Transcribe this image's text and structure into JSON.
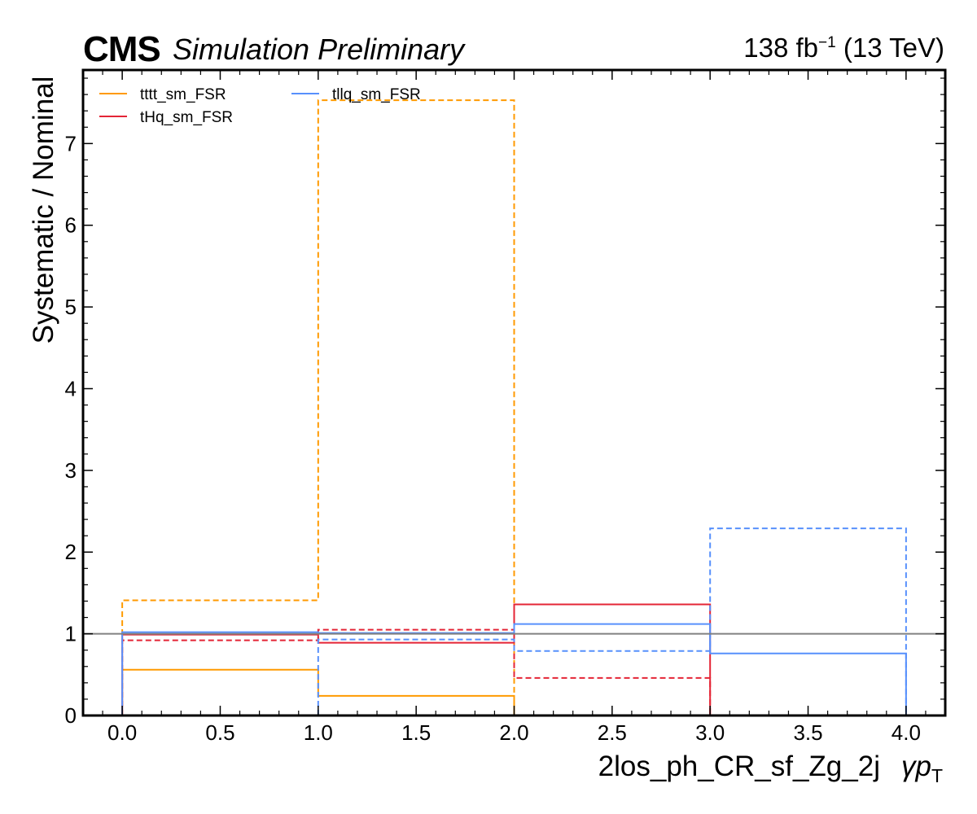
{
  "header": {
    "experiment": "CMS",
    "status": "Simulation Preliminary",
    "lumi_value": "138 fb",
    "lumi_exponent": "−1",
    "energy": "(13 TeV)"
  },
  "chart_data": {
    "type": "step",
    "xlabel_region": "2los_ph_CR_sf_Zg_2j",
    "xlabel_symbol": "γp",
    "xlabel_subscript": "T",
    "ylabel": "Systematic / Nominal",
    "xlim": [
      -0.2,
      4.2
    ],
    "ylim": [
      0,
      7.9
    ],
    "x_ticks": [
      "0.0",
      "0.5",
      "1.0",
      "1.5",
      "2.0",
      "2.5",
      "3.0",
      "3.5",
      "4.0"
    ],
    "y_ticks": [
      "0",
      "1",
      "2",
      "3",
      "4",
      "5",
      "6",
      "7"
    ],
    "bin_edges": [
      0,
      1,
      2,
      3,
      4
    ],
    "reference_line": 1,
    "legend_position": "top-left",
    "series": [
      {
        "name": "tttt_sm_FSR",
        "color": "#ff9a00",
        "up": [
          0.56,
          0.24,
          null,
          null
        ],
        "down": [
          1.41,
          7.53,
          null,
          null
        ]
      },
      {
        "name": "tHq_sm_FSR",
        "color": "#e42536",
        "up": [
          0.99,
          0.89,
          1.36,
          null
        ],
        "down": [
          0.92,
          1.05,
          0.46,
          null
        ]
      },
      {
        "name": "tllq_sm_FSR",
        "color": "#5790fc",
        "up": [
          1.02,
          1.01,
          1.12,
          0.76
        ],
        "down": [
          null,
          0.93,
          0.79,
          2.29
        ]
      }
    ]
  }
}
